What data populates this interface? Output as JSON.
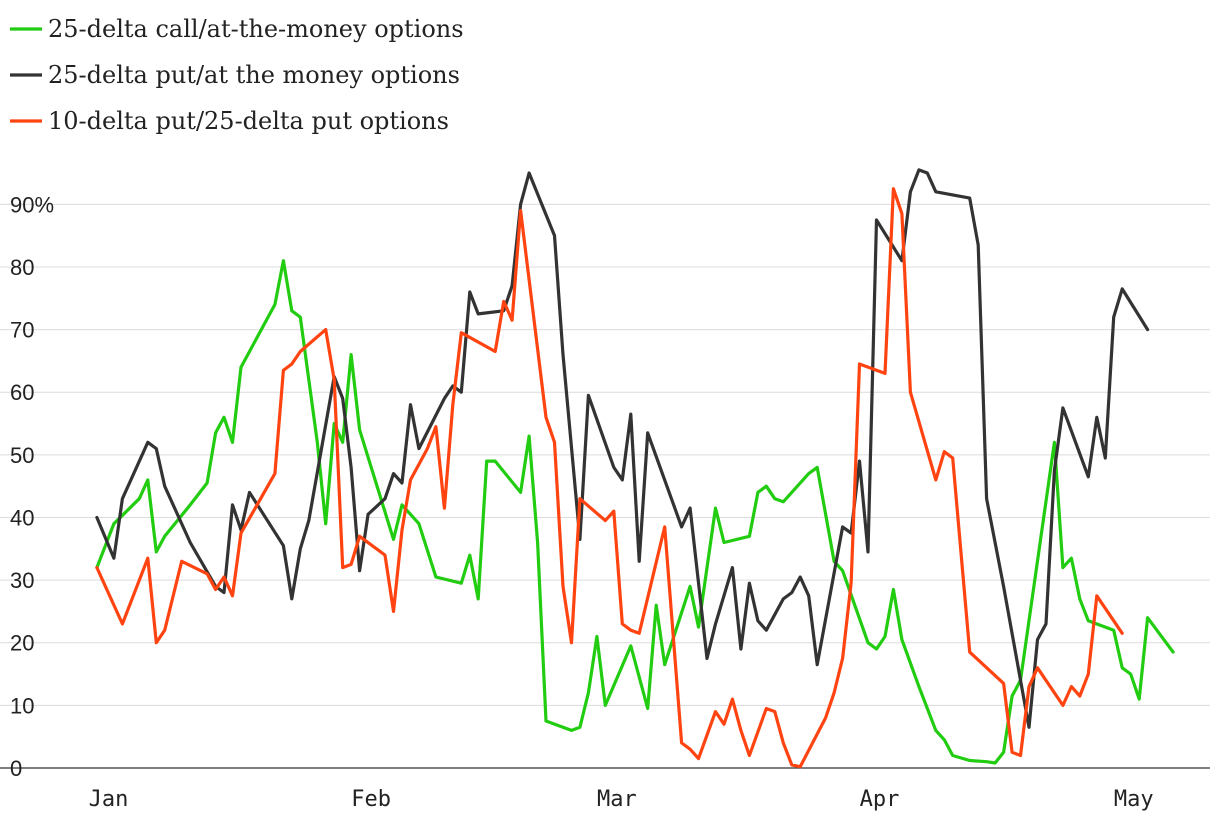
{
  "chart_data": {
    "type": "line",
    "title": "",
    "xlabel": "",
    "ylabel": "",
    "ylim": [
      0,
      95
    ],
    "y_ticks": [
      {
        "value": 0,
        "label": "0"
      },
      {
        "value": 10,
        "label": "10"
      },
      {
        "value": 20,
        "label": "20"
      },
      {
        "value": 30,
        "label": "30"
      },
      {
        "value": 40,
        "label": "40"
      },
      {
        "value": 50,
        "label": "50"
      },
      {
        "value": 60,
        "label": "60"
      },
      {
        "value": 70,
        "label": "70"
      },
      {
        "value": 80,
        "label": "80"
      },
      {
        "value": 90,
        "label": "90%"
      }
    ],
    "x_ticks": [
      {
        "date": "2020-01-01",
        "label": "Jan"
      },
      {
        "date": "2020-02-01",
        "label": "Feb"
      },
      {
        "date": "2020-03-01",
        "label": "Mar"
      },
      {
        "date": "2020-04-01",
        "label": "Apr"
      },
      {
        "date": "2020-05-01",
        "label": "May"
      }
    ],
    "xlim": [
      "2019-12-31",
      "2020-05-10"
    ],
    "grid": true,
    "legend_position": "top-left",
    "series": [
      {
        "name": "25-delta call/at-the-money options",
        "color": "#22cc11",
        "points": [
          [
            "2020-01-02",
            32
          ],
          [
            "2020-01-04",
            39
          ],
          [
            "2020-01-07",
            43
          ],
          [
            "2020-01-08",
            46
          ],
          [
            "2020-01-09",
            34.5
          ],
          [
            "2020-01-10",
            37
          ],
          [
            "2020-01-13",
            42
          ],
          [
            "2020-01-15",
            45.5
          ],
          [
            "2020-01-16",
            53.5
          ],
          [
            "2020-01-17",
            56
          ],
          [
            "2020-01-18",
            52
          ],
          [
            "2020-01-19",
            64
          ],
          [
            "2020-01-23",
            74
          ],
          [
            "2020-01-24",
            81
          ],
          [
            "2020-01-25",
            73
          ],
          [
            "2020-01-26",
            72
          ],
          [
            "2020-01-28",
            52
          ],
          [
            "2020-01-29",
            39
          ],
          [
            "2020-01-30",
            55
          ],
          [
            "2020-01-31",
            52
          ],
          [
            "2020-02-01",
            66
          ],
          [
            "2020-02-02",
            54
          ],
          [
            "2020-02-06",
            36.5
          ],
          [
            "2020-02-07",
            42
          ],
          [
            "2020-02-09",
            39
          ],
          [
            "2020-02-11",
            30.5
          ],
          [
            "2020-02-14",
            29.5
          ],
          [
            "2020-02-15",
            34
          ],
          [
            "2020-02-16",
            27
          ],
          [
            "2020-02-17",
            49
          ],
          [
            "2020-02-18",
            49
          ],
          [
            "2020-02-21",
            44
          ],
          [
            "2020-02-22",
            53
          ],
          [
            "2020-02-23",
            36
          ],
          [
            "2020-02-24",
            7.5
          ],
          [
            "2020-02-26",
            6.5
          ],
          [
            "2020-02-27",
            6
          ],
          [
            "2020-02-28",
            6.5
          ],
          [
            "2020-02-29",
            12
          ],
          [
            "2020-03-01",
            21
          ],
          [
            "2020-03-02",
            10
          ],
          [
            "2020-03-05",
            19.5
          ],
          [
            "2020-03-07",
            9.5
          ],
          [
            "2020-03-08",
            26
          ],
          [
            "2020-03-09",
            16.5
          ],
          [
            "2020-03-12",
            29
          ],
          [
            "2020-03-13",
            22.5
          ],
          [
            "2020-03-15",
            41.5
          ],
          [
            "2020-03-16",
            36
          ],
          [
            "2020-03-19",
            37
          ],
          [
            "2020-03-20",
            44
          ],
          [
            "2020-03-21",
            45
          ],
          [
            "2020-03-22",
            43
          ],
          [
            "2020-03-23",
            42.5
          ],
          [
            "2020-03-26",
            47
          ],
          [
            "2020-03-27",
            48
          ],
          [
            "2020-03-29",
            33
          ],
          [
            "2020-03-30",
            31.5
          ],
          [
            "2020-04-02",
            20
          ],
          [
            "2020-04-03",
            19
          ],
          [
            "2020-04-04",
            21
          ],
          [
            "2020-04-05",
            28.5
          ],
          [
            "2020-04-06",
            20.5
          ],
          [
            "2020-04-08",
            13
          ],
          [
            "2020-04-10",
            6
          ],
          [
            "2020-04-11",
            4.5
          ],
          [
            "2020-04-12",
            2
          ],
          [
            "2020-04-14",
            1.2
          ],
          [
            "2020-04-16",
            1
          ],
          [
            "2020-04-17",
            0.8
          ],
          [
            "2020-04-18",
            2.5
          ],
          [
            "2020-04-19",
            11.5
          ],
          [
            "2020-04-20",
            14
          ],
          [
            "2020-04-24",
            52
          ],
          [
            "2020-04-25",
            32
          ],
          [
            "2020-04-26",
            33.5
          ],
          [
            "2020-04-27",
            27
          ],
          [
            "2020-04-28",
            23.5
          ],
          [
            "2020-05-01",
            22
          ],
          [
            "2020-05-02",
            16
          ],
          [
            "2020-05-03",
            15
          ],
          [
            "2020-05-04",
            11
          ],
          [
            "2020-05-05",
            24
          ],
          [
            "2020-05-08",
            18.5
          ]
        ]
      },
      {
        "name": "25-delta put/at the money options",
        "color": "#333333",
        "points": [
          [
            "2020-01-02",
            40
          ],
          [
            "2020-01-04",
            33.5
          ],
          [
            "2020-01-05",
            43
          ],
          [
            "2020-01-08",
            52
          ],
          [
            "2020-01-09",
            51
          ],
          [
            "2020-01-10",
            45
          ],
          [
            "2020-01-13",
            36
          ],
          [
            "2020-01-16",
            29
          ],
          [
            "2020-01-17",
            28
          ],
          [
            "2020-01-18",
            42
          ],
          [
            "2020-01-19",
            38
          ],
          [
            "2020-01-20",
            44
          ],
          [
            "2020-01-24",
            35.5
          ],
          [
            "2020-01-25",
            27
          ],
          [
            "2020-01-26",
            35
          ],
          [
            "2020-01-27",
            39.5
          ],
          [
            "2020-01-30",
            62.5
          ],
          [
            "2020-01-31",
            59
          ],
          [
            "2020-02-01",
            48
          ],
          [
            "2020-02-02",
            31.5
          ],
          [
            "2020-02-03",
            40.5
          ],
          [
            "2020-02-05",
            43
          ],
          [
            "2020-02-06",
            47
          ],
          [
            "2020-02-07",
            45.5
          ],
          [
            "2020-02-08",
            58
          ],
          [
            "2020-02-09",
            51
          ],
          [
            "2020-02-12",
            59
          ],
          [
            "2020-02-13",
            61
          ],
          [
            "2020-02-14",
            60
          ],
          [
            "2020-02-15",
            76
          ],
          [
            "2020-02-16",
            72.5
          ],
          [
            "2020-02-19",
            73
          ],
          [
            "2020-02-20",
            77
          ],
          [
            "2020-02-21",
            90
          ],
          [
            "2020-02-22",
            95
          ],
          [
            "2020-02-25",
            85
          ],
          [
            "2020-02-26",
            66
          ],
          [
            "2020-02-28",
            36.5
          ],
          [
            "2020-02-29",
            59.5
          ],
          [
            "2020-03-03",
            48
          ],
          [
            "2020-03-04",
            46
          ],
          [
            "2020-03-05",
            56.5
          ],
          [
            "2020-03-06",
            33
          ],
          [
            "2020-03-07",
            53.5
          ],
          [
            "2020-03-11",
            38.5
          ],
          [
            "2020-03-12",
            41.5
          ],
          [
            "2020-03-14",
            17.5
          ],
          [
            "2020-03-15",
            23
          ],
          [
            "2020-03-17",
            32
          ],
          [
            "2020-03-18",
            19
          ],
          [
            "2020-03-19",
            29.5
          ],
          [
            "2020-03-20",
            23.5
          ],
          [
            "2020-03-21",
            22
          ],
          [
            "2020-03-23",
            27
          ],
          [
            "2020-03-24",
            28
          ],
          [
            "2020-03-25",
            30.5
          ],
          [
            "2020-03-26",
            27.5
          ],
          [
            "2020-03-27",
            16.5
          ],
          [
            "2020-03-30",
            38.5
          ],
          [
            "2020-03-31",
            37.5
          ],
          [
            "2020-04-01",
            49
          ],
          [
            "2020-04-02",
            34.5
          ],
          [
            "2020-04-03",
            87.5
          ],
          [
            "2020-04-06",
            81
          ],
          [
            "2020-04-07",
            92
          ],
          [
            "2020-04-08",
            95.5
          ],
          [
            "2020-04-09",
            95
          ],
          [
            "2020-04-10",
            92
          ],
          [
            "2020-04-14",
            91
          ],
          [
            "2020-04-15",
            83.5
          ],
          [
            "2020-04-16",
            43
          ],
          [
            "2020-04-18",
            29
          ],
          [
            "2020-04-21",
            6.5
          ],
          [
            "2020-04-22",
            20.5
          ],
          [
            "2020-04-23",
            23
          ],
          [
            "2020-04-24",
            47.5
          ],
          [
            "2020-04-25",
            57.5
          ],
          [
            "2020-04-28",
            46.5
          ],
          [
            "2020-04-29",
            56
          ],
          [
            "2020-04-30",
            49.5
          ],
          [
            "2020-05-01",
            72
          ],
          [
            "2020-05-02",
            76.5
          ],
          [
            "2020-05-05",
            70
          ]
        ]
      },
      {
        "name": "10-delta put/25-delta put options",
        "color": "#ff4411",
        "points": [
          [
            "2020-01-02",
            32
          ],
          [
            "2020-01-05",
            23
          ],
          [
            "2020-01-08",
            33.5
          ],
          [
            "2020-01-09",
            20
          ],
          [
            "2020-01-10",
            22
          ],
          [
            "2020-01-12",
            33
          ],
          [
            "2020-01-15",
            31
          ],
          [
            "2020-01-16",
            28.5
          ],
          [
            "2020-01-17",
            30.5
          ],
          [
            "2020-01-18",
            27.5
          ],
          [
            "2020-01-19",
            37.5
          ],
          [
            "2020-01-23",
            47
          ],
          [
            "2020-01-24",
            63.5
          ],
          [
            "2020-01-25",
            64.5
          ],
          [
            "2020-01-26",
            66.5
          ],
          [
            "2020-01-29",
            70
          ],
          [
            "2020-01-30",
            62
          ],
          [
            "2020-01-31",
            32
          ],
          [
            "2020-02-01",
            32.5
          ],
          [
            "2020-02-02",
            37
          ],
          [
            "2020-02-05",
            34
          ],
          [
            "2020-02-06",
            25
          ],
          [
            "2020-02-07",
            38
          ],
          [
            "2020-02-08",
            46
          ],
          [
            "2020-02-10",
            51
          ],
          [
            "2020-02-11",
            54.5
          ],
          [
            "2020-02-12",
            41.5
          ],
          [
            "2020-02-13",
            58
          ],
          [
            "2020-02-14",
            69.5
          ],
          [
            "2020-02-18",
            66.5
          ],
          [
            "2020-02-19",
            74.5
          ],
          [
            "2020-02-20",
            71.5
          ],
          [
            "2020-02-21",
            89
          ],
          [
            "2020-02-24",
            56
          ],
          [
            "2020-02-25",
            52
          ],
          [
            "2020-02-26",
            29
          ],
          [
            "2020-02-27",
            20
          ],
          [
            "2020-02-28",
            43
          ],
          [
            "2020-03-02",
            39.5
          ],
          [
            "2020-03-03",
            41
          ],
          [
            "2020-03-04",
            23
          ],
          [
            "2020-03-05",
            22
          ],
          [
            "2020-03-06",
            21.5
          ],
          [
            "2020-03-09",
            38.5
          ],
          [
            "2020-03-11",
            4
          ],
          [
            "2020-03-12",
            3
          ],
          [
            "2020-03-13",
            1.5
          ],
          [
            "2020-03-15",
            9
          ],
          [
            "2020-03-16",
            7
          ],
          [
            "2020-03-17",
            11
          ],
          [
            "2020-03-18",
            6
          ],
          [
            "2020-03-19",
            2
          ],
          [
            "2020-03-21",
            9.5
          ],
          [
            "2020-03-22",
            9
          ],
          [
            "2020-03-23",
            4
          ],
          [
            "2020-03-24",
            0.5
          ],
          [
            "2020-03-25",
            0.2
          ],
          [
            "2020-03-28",
            8
          ],
          [
            "2020-03-29",
            12
          ],
          [
            "2020-03-30",
            17.5
          ],
          [
            "2020-03-31",
            29.5
          ],
          [
            "2020-04-01",
            64.5
          ],
          [
            "2020-04-04",
            63
          ],
          [
            "2020-04-05",
            92.5
          ],
          [
            "2020-04-06",
            88.5
          ],
          [
            "2020-04-07",
            60
          ],
          [
            "2020-04-10",
            46
          ],
          [
            "2020-04-11",
            50.5
          ],
          [
            "2020-04-12",
            49.5
          ],
          [
            "2020-04-14",
            18.5
          ],
          [
            "2020-04-18",
            13.5
          ],
          [
            "2020-04-19",
            2.5
          ],
          [
            "2020-04-20",
            2
          ],
          [
            "2020-04-21",
            13
          ],
          [
            "2020-04-22",
            16
          ],
          [
            "2020-04-25",
            10
          ],
          [
            "2020-04-26",
            13
          ],
          [
            "2020-04-27",
            11.5
          ],
          [
            "2020-04-28",
            15
          ],
          [
            "2020-04-29",
            27.5
          ],
          [
            "2020-05-02",
            21.5
          ]
        ]
      }
    ]
  }
}
